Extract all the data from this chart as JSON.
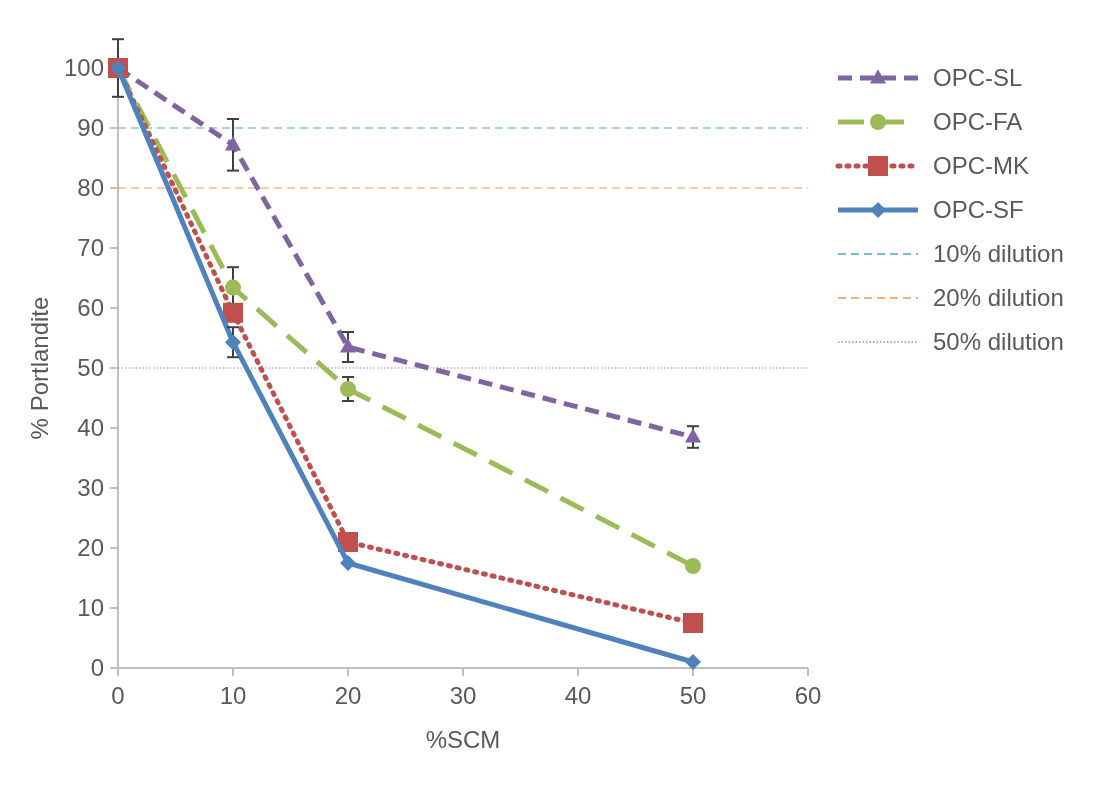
{
  "chart_data": {
    "type": "line",
    "xlabel": "%SCM",
    "ylabel": "% Portlandite",
    "x": [
      0,
      10,
      20,
      50
    ],
    "xlim": [
      0,
      60
    ],
    "xticks": [
      0,
      10,
      20,
      30,
      40,
      50,
      60
    ],
    "ylim": [
      0,
      100
    ],
    "yticks": [
      0,
      10,
      20,
      30,
      40,
      50,
      60,
      70,
      80,
      90,
      100
    ],
    "grid": false,
    "legend": "right",
    "series": [
      {
        "name": "OPC-SL",
        "color": "#8064a2",
        "values": [
          100,
          87.2,
          53.5,
          38.5
        ],
        "errors": [
          4.8,
          4.3,
          2.5,
          1.8
        ],
        "marker": "triangle",
        "line_style": "dashed"
      },
      {
        "name": "OPC-FA",
        "color": "#9bbb59",
        "values": [
          100,
          63.4,
          46.5,
          17
        ],
        "errors": [
          null,
          3.4,
          2,
          null
        ],
        "marker": "circle",
        "line_style": "longdash"
      },
      {
        "name": "OPC-MK",
        "color": "#c0504d",
        "values": [
          100,
          59.2,
          21,
          7.5
        ],
        "marker": "square",
        "line_style": "dotted"
      },
      {
        "name": "OPC-SF",
        "color": "#4f81bd",
        "values": [
          100,
          54.3,
          17.5,
          1
        ],
        "errors": [
          null,
          2.5,
          null,
          null
        ],
        "marker": "diamond",
        "line_style": "solid"
      }
    ],
    "ref_lines": [
      {
        "axis": "y",
        "value": 90,
        "label": "10% dilution",
        "color": "#4bacc6",
        "line_style": "dashed"
      },
      {
        "axis": "y",
        "value": 80,
        "label": "20% dilution",
        "color": "#f79646",
        "line_style": "dashed"
      },
      {
        "axis": "y",
        "value": 50,
        "label": "50% dilution",
        "color": "#7f8fbf",
        "line_style": "dotted"
      }
    ]
  }
}
